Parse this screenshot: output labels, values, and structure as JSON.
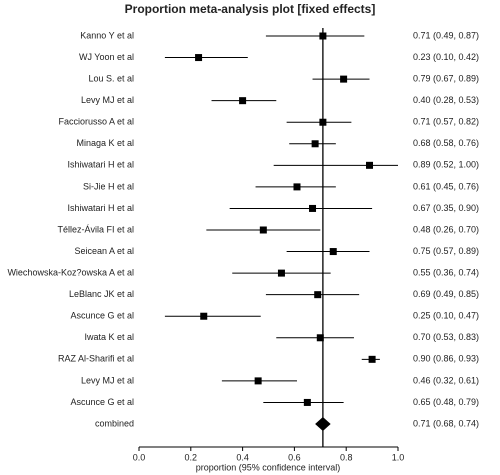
{
  "chart_data": {
    "type": "forest",
    "title": "Proportion meta-analysis plot [fixed effects]",
    "x_label": "proportion (95% confidence interval)",
    "categories": [
      "Kanno Y et al",
      "WJ Yoon et al",
      "Lou S. et al",
      "Levy MJ et al",
      "Facciorusso A et al",
      "Minaga K et al",
      "Ishiwatari H et al",
      "Si-Jie H et al",
      "Ishiwatari H et al",
      "Téllez-Ávila FI et al",
      "Seicean A et al",
      "Wiechowska-Koz?owska A et al",
      "LeBlanc JK et al",
      "Ascunce G et al",
      "Iwata K et al",
      "RAZ Al-Sharifi et al",
      "Levy MJ et al",
      "Ascunce G et al"
    ],
    "values": [
      0.71,
      0.23,
      0.79,
      0.4,
      0.71,
      0.68,
      0.89,
      0.61,
      0.67,
      0.48,
      0.75,
      0.55,
      0.69,
      0.25,
      0.7,
      0.9,
      0.46,
      0.65
    ],
    "lower": [
      0.49,
      0.1,
      0.67,
      0.28,
      0.57,
      0.58,
      0.52,
      0.45,
      0.35,
      0.26,
      0.57,
      0.36,
      0.49,
      0.1,
      0.53,
      0.86,
      0.32,
      0.48
    ],
    "upper": [
      0.87,
      0.42,
      0.89,
      0.53,
      0.82,
      0.76,
      1.0,
      0.76,
      0.9,
      0.7,
      0.89,
      0.74,
      0.85,
      0.47,
      0.83,
      0.93,
      0.61,
      0.79
    ],
    "value_labels": [
      "0.71 (0.49, 0.87)",
      "0.23 (0.10, 0.42)",
      "0.79 (0.67, 0.89)",
      "0.40 (0.28, 0.53)",
      "0.71 (0.57, 0.82)",
      "0.68 (0.58, 0.76)",
      "0.89 (0.52, 1.00)",
      "0.61 (0.45, 0.76)",
      "0.67 (0.35, 0.90)",
      "0.48 (0.26, 0.70)",
      "0.75 (0.57, 0.89)",
      "0.55 (0.36, 0.74)",
      "0.69 (0.49, 0.85)",
      "0.25 (0.10, 0.47)",
      "0.70 (0.53, 0.83)",
      "0.90 (0.86, 0.93)",
      "0.46 (0.32, 0.61)",
      "0.65 (0.48, 0.79)"
    ],
    "combined": {
      "label": "combined",
      "value": 0.71,
      "lower": 0.68,
      "upper": 0.74,
      "value_label": "0.71 (0.68, 0.74)"
    },
    "color": "#000000",
    "xlim": [
      0,
      1
    ],
    "xticks": [
      {
        "value": 0,
        "label": "0.0"
      },
      {
        "value": 0.2,
        "label": "0.2"
      },
      {
        "value": 0.4,
        "label": "0.4"
      },
      {
        "value": 0.6,
        "label": "0.6"
      },
      {
        "value": 0.8,
        "label": "0.8"
      },
      {
        "value": 1,
        "label": "1.0"
      }
    ]
  }
}
